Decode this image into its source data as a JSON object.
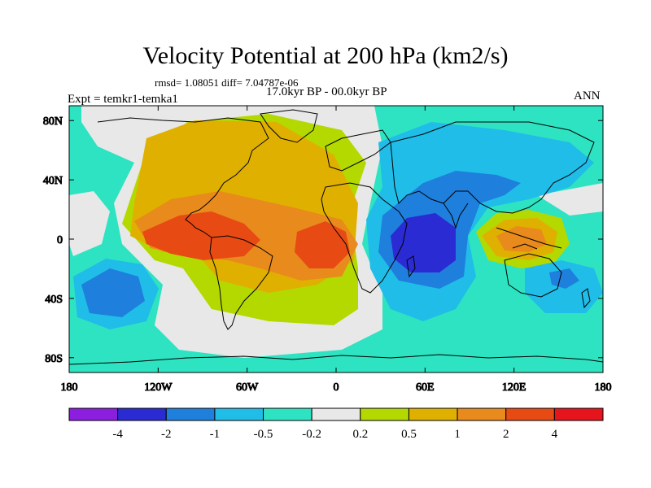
{
  "figure": {
    "title": "Velocity Potential at 200 hPa (km2/s)",
    "stats": "rmsd= 1.08051 diff= 7.04787e-06",
    "period": "17.0kyr BP - 00.0kyr BP",
    "experiment": "Expt = temkr1-temka1",
    "season": "ANN"
  },
  "map": {
    "lat_labels": [
      "80N",
      "40N",
      "0",
      "40S",
      "80S"
    ],
    "lon_labels": [
      "180",
      "120W",
      "60W",
      "0",
      "60E",
      "120E",
      "180"
    ]
  },
  "colorbar": {
    "colors": [
      "#8c1ee0",
      "#2b2bd4",
      "#1f7fdc",
      "#1fbde8",
      "#2ee3c2",
      "#e8e8e8",
      "#b3d900",
      "#e0b000",
      "#e88a1c",
      "#e84a14",
      "#e6141c"
    ],
    "labels": [
      "-4",
      "-2",
      "-1",
      "-0.5",
      "-0.2",
      "0.2",
      "0.5",
      "1",
      "2",
      "4"
    ]
  },
  "chart_data": {
    "type": "heatmap",
    "title": "Velocity Potential at 200 hPa (km2/s)",
    "subtitle": "17.0kyr BP - 00.0kyr BP",
    "levels": [
      -4,
      -2,
      -1,
      -0.5,
      -0.2,
      0.2,
      0.5,
      1,
      2,
      4
    ],
    "xlim": [
      -180,
      180
    ],
    "ylim": [
      -90,
      90
    ],
    "xticks": [
      -180,
      -120,
      -60,
      0,
      60,
      120,
      180
    ],
    "yticks": [
      80,
      40,
      0,
      -40,
      -80
    ],
    "contour_centers": [
      {
        "lon": -75,
        "lat": 10,
        "value": 2.5
      },
      {
        "lon": -10,
        "lat": -5,
        "value": 2.5
      },
      {
        "lon": 120,
        "lat": 5,
        "value": 2.2
      },
      {
        "lon": 40,
        "lat": -5,
        "value": -2.5
      },
      {
        "lon": -160,
        "lat": -40,
        "value": -1.2
      },
      {
        "lon": 150,
        "lat": -25,
        "value": -1.0
      },
      {
        "lon": 90,
        "lat": 35,
        "value": -1.0
      }
    ]
  }
}
